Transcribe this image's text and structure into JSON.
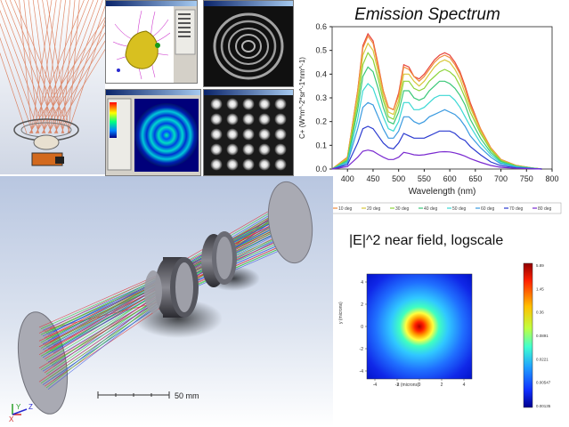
{
  "emission": {
    "title": "Emission Spectrum",
    "ylabel": "C+ (W*m^-2*sr^-1*nm^-1)",
    "xlabel": "Wavelength (nm)",
    "xticks": [
      "400",
      "450",
      "500",
      "550",
      "600",
      "650",
      "700",
      "750",
      "800"
    ],
    "yticks": [
      "0.0",
      "0.1",
      "0.2",
      "0.3",
      "0.4",
      "0.5",
      "0.6"
    ]
  },
  "nearfield": {
    "title": "|E|^2 near field, logscale",
    "xlabel": "x (microns)",
    "ylabel": "y (microns)",
    "xticks": [
      "-4",
      "-2",
      "0",
      "2",
      "4"
    ],
    "yticks": [
      "4",
      "2",
      "0",
      "-2",
      "-4"
    ],
    "colorbar_ticks": [
      "5.89",
      "1.45",
      "0.36",
      "0.0891",
      "0.0221",
      "0.00547",
      "0.00135"
    ]
  },
  "scalebar": {
    "label": "50 mm"
  },
  "axes_indicator": {
    "x": "X",
    "y": "Y",
    "z": "Z"
  },
  "chart_data": {
    "type": "line",
    "title": "Emission Spectrum",
    "xlabel": "Wavelength (nm)",
    "ylabel": "C+ (W*m^-2*sr^-1*nm^-1)",
    "xlim": [
      370,
      800
    ],
    "ylim": [
      0,
      0.6
    ],
    "x": [
      370,
      400,
      420,
      430,
      440,
      450,
      460,
      470,
      480,
      490,
      500,
      510,
      520,
      530,
      540,
      550,
      560,
      570,
      580,
      590,
      600,
      610,
      620,
      630,
      640,
      660,
      680,
      700,
      730,
      760,
      780
    ],
    "grid": false,
    "legend_position": "bottom",
    "series": [
      {
        "name": "0 deg",
        "color": "#e8443a",
        "values": [
          0.0,
          0.05,
          0.33,
          0.52,
          0.57,
          0.54,
          0.44,
          0.33,
          0.26,
          0.25,
          0.32,
          0.44,
          0.43,
          0.39,
          0.38,
          0.4,
          0.43,
          0.46,
          0.48,
          0.49,
          0.48,
          0.45,
          0.41,
          0.35,
          0.28,
          0.17,
          0.09,
          0.04,
          0.015,
          0.005,
          0.0
        ]
      },
      {
        "name": "10 deg",
        "color": "#f08a3a",
        "values": [
          0.0,
          0.05,
          0.33,
          0.51,
          0.56,
          0.53,
          0.43,
          0.33,
          0.26,
          0.25,
          0.31,
          0.43,
          0.42,
          0.39,
          0.37,
          0.39,
          0.42,
          0.45,
          0.47,
          0.48,
          0.47,
          0.44,
          0.4,
          0.34,
          0.27,
          0.17,
          0.09,
          0.04,
          0.015,
          0.005,
          0.0
        ]
      },
      {
        "name": "20 deg",
        "color": "#d8c83a",
        "values": [
          0.0,
          0.045,
          0.31,
          0.48,
          0.53,
          0.5,
          0.41,
          0.31,
          0.24,
          0.23,
          0.29,
          0.4,
          0.4,
          0.37,
          0.35,
          0.37,
          0.4,
          0.43,
          0.45,
          0.46,
          0.45,
          0.42,
          0.38,
          0.32,
          0.26,
          0.16,
          0.085,
          0.038,
          0.014,
          0.005,
          0.0
        ]
      },
      {
        "name": "30 deg",
        "color": "#8cd43a",
        "values": [
          0.0,
          0.04,
          0.28,
          0.44,
          0.49,
          0.46,
          0.38,
          0.29,
          0.22,
          0.21,
          0.27,
          0.37,
          0.37,
          0.34,
          0.33,
          0.34,
          0.37,
          0.39,
          0.41,
          0.42,
          0.41,
          0.39,
          0.35,
          0.3,
          0.24,
          0.15,
          0.08,
          0.035,
          0.013,
          0.004,
          0.0
        ]
      },
      {
        "name": "40 deg",
        "color": "#3ac878",
        "values": [
          0.0,
          0.035,
          0.25,
          0.39,
          0.43,
          0.41,
          0.34,
          0.26,
          0.2,
          0.19,
          0.24,
          0.33,
          0.33,
          0.3,
          0.29,
          0.3,
          0.33,
          0.35,
          0.37,
          0.37,
          0.36,
          0.34,
          0.31,
          0.27,
          0.21,
          0.13,
          0.07,
          0.031,
          0.011,
          0.004,
          0.0
        ]
      },
      {
        "name": "50 deg",
        "color": "#3ad8d4",
        "values": [
          0.0,
          0.03,
          0.21,
          0.33,
          0.36,
          0.34,
          0.28,
          0.22,
          0.17,
          0.16,
          0.2,
          0.28,
          0.28,
          0.25,
          0.25,
          0.26,
          0.28,
          0.3,
          0.31,
          0.31,
          0.31,
          0.29,
          0.26,
          0.22,
          0.18,
          0.11,
          0.06,
          0.026,
          0.01,
          0.003,
          0.0
        ]
      },
      {
        "name": "60 deg",
        "color": "#3a9ae0",
        "values": [
          0.0,
          0.025,
          0.17,
          0.26,
          0.28,
          0.27,
          0.22,
          0.17,
          0.13,
          0.13,
          0.16,
          0.22,
          0.22,
          0.2,
          0.19,
          0.2,
          0.22,
          0.23,
          0.24,
          0.25,
          0.24,
          0.23,
          0.21,
          0.18,
          0.14,
          0.09,
          0.05,
          0.021,
          0.008,
          0.003,
          0.0
        ]
      },
      {
        "name": "70 deg",
        "color": "#2a3ad0",
        "values": [
          0.0,
          0.018,
          0.11,
          0.17,
          0.18,
          0.17,
          0.14,
          0.11,
          0.09,
          0.085,
          0.11,
          0.15,
          0.14,
          0.13,
          0.13,
          0.13,
          0.14,
          0.15,
          0.16,
          0.16,
          0.16,
          0.15,
          0.13,
          0.12,
          0.095,
          0.06,
          0.03,
          0.014,
          0.005,
          0.002,
          0.0
        ]
      },
      {
        "name": "80 deg",
        "color": "#7a2ad0",
        "values": [
          0.0,
          0.01,
          0.05,
          0.075,
          0.08,
          0.075,
          0.062,
          0.05,
          0.04,
          0.04,
          0.05,
          0.07,
          0.066,
          0.06,
          0.058,
          0.06,
          0.064,
          0.068,
          0.072,
          0.073,
          0.072,
          0.068,
          0.062,
          0.054,
          0.044,
          0.028,
          0.015,
          0.007,
          0.003,
          0.001,
          0.0
        ]
      }
    ]
  },
  "colors": {
    "raytrace_bg": "#c8d4e8",
    "lens_gray": "#a9aab3",
    "ray_red": "#e02828",
    "ray_green": "#28c828",
    "ray_blue": "#2848e0"
  }
}
